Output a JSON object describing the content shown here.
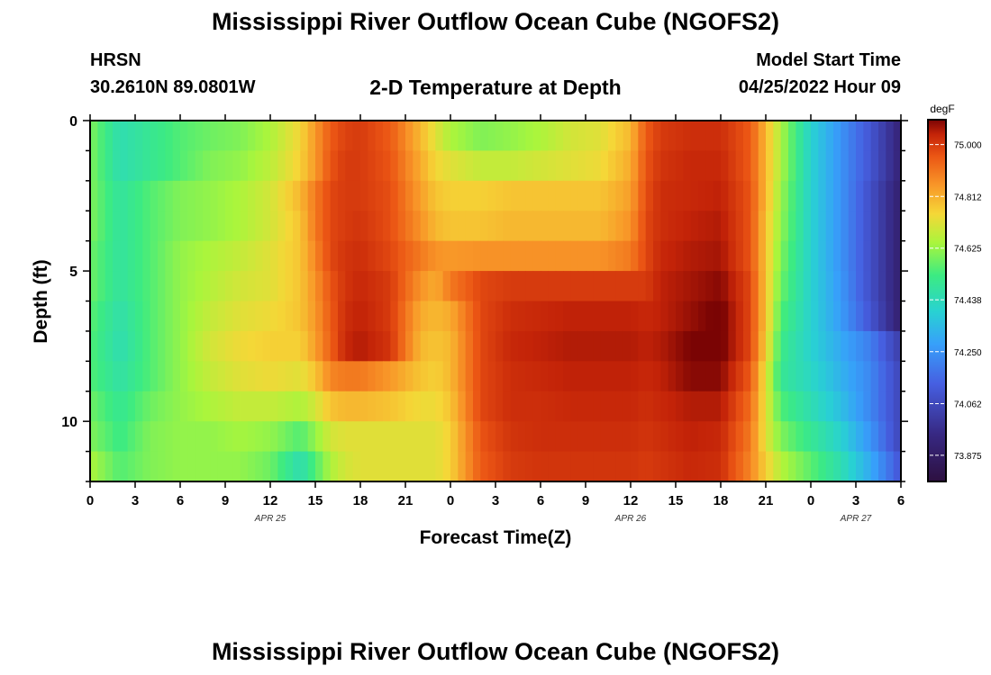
{
  "header": {
    "title": "Mississippi River Outflow Ocean Cube (NGOFS2)",
    "station": "HRSN",
    "coords": "30.2610N  89.0801W",
    "subtitle": "2-D Temperature at Depth",
    "model_start_label": "Model Start Time",
    "model_start_value": "04/25/2022 Hour 09"
  },
  "footer": {
    "title": "Mississippi River Outflow Ocean Cube (NGOFS2)"
  },
  "chart_data": {
    "type": "heatmap",
    "title": "2-D Temperature at Depth",
    "xlabel": "Forecast Time(Z)",
    "ylabel": "Depth (ft)",
    "x_tick_labels": [
      "0",
      "3",
      "6",
      "9",
      "12",
      "15",
      "18",
      "21",
      "0",
      "3",
      "6",
      "9",
      "12",
      "15",
      "18",
      "21",
      "0",
      "3",
      "6"
    ],
    "x_hours": [
      0,
      54
    ],
    "date_labels": [
      {
        "text": "APR 25",
        "hour": 12
      },
      {
        "text": "APR 26",
        "hour": 36
      },
      {
        "text": "APR 27",
        "hour": 51
      }
    ],
    "y_tick_labels": [
      "0",
      "5",
      "10"
    ],
    "y_tick_values": [
      0,
      5,
      10
    ],
    "ylim": [
      0,
      12
    ],
    "colorbar": {
      "unit": "degF",
      "labels": [
        "75.000",
        "74.812",
        "74.625",
        "74.438",
        "74.250",
        "74.062",
        "73.875"
      ],
      "values": [
        75.0,
        74.812,
        74.625,
        74.438,
        74.25,
        74.062,
        73.875
      ],
      "range": [
        73.78,
        75.09
      ]
    },
    "depth_rows_ft": [
      0.5,
      1.5,
      2.5,
      3.5,
      4.5,
      5.5,
      6.5,
      7.5,
      8.5,
      9.5,
      10.5,
      11.5
    ],
    "column_hours": [
      0,
      2,
      4,
      6,
      8,
      10,
      12,
      14,
      15,
      16,
      17,
      18,
      20,
      22,
      23,
      24,
      26,
      28,
      30,
      32,
      34,
      36,
      37,
      38,
      40,
      42,
      44,
      45,
      46,
      48,
      50,
      52,
      54
    ],
    "temperature_degF": [
      [
        74.6,
        74.45,
        74.5,
        74.55,
        74.58,
        74.6,
        74.65,
        74.75,
        74.85,
        74.95,
        74.99,
        75.0,
        74.95,
        74.8,
        74.72,
        74.65,
        74.6,
        74.62,
        74.65,
        74.7,
        74.72,
        74.8,
        74.95,
        75.0,
        75.02,
        75.02,
        74.95,
        74.8,
        74.65,
        74.4,
        74.25,
        74.1,
        73.92
      ],
      [
        74.6,
        74.45,
        74.5,
        74.55,
        74.6,
        74.62,
        74.67,
        74.76,
        74.85,
        74.96,
        75.0,
        75.0,
        74.96,
        74.82,
        74.75,
        74.72,
        74.68,
        74.68,
        74.7,
        74.72,
        74.74,
        74.82,
        74.96,
        75.01,
        75.03,
        75.03,
        74.95,
        74.8,
        74.65,
        74.4,
        74.25,
        74.1,
        73.92
      ],
      [
        74.6,
        74.48,
        74.55,
        74.6,
        74.62,
        74.65,
        74.7,
        74.8,
        74.9,
        74.98,
        75.0,
        75.0,
        74.97,
        74.84,
        74.78,
        74.76,
        74.76,
        74.78,
        74.78,
        74.78,
        74.78,
        74.84,
        74.97,
        75.02,
        75.03,
        75.04,
        74.96,
        74.8,
        74.63,
        74.4,
        74.25,
        74.08,
        73.9
      ],
      [
        74.6,
        74.48,
        74.55,
        74.6,
        74.62,
        74.65,
        74.7,
        74.78,
        74.9,
        74.98,
        75.0,
        75.01,
        74.97,
        74.86,
        74.8,
        74.78,
        74.78,
        74.8,
        74.8,
        74.8,
        74.8,
        74.86,
        74.98,
        75.02,
        75.04,
        75.05,
        74.96,
        74.78,
        74.62,
        74.4,
        74.25,
        74.08,
        73.9
      ],
      [
        74.58,
        74.48,
        74.55,
        74.62,
        74.65,
        74.68,
        74.72,
        74.78,
        74.88,
        74.98,
        75.01,
        75.02,
        74.98,
        74.9,
        74.86,
        74.85,
        74.86,
        74.86,
        74.86,
        74.86,
        74.86,
        74.9,
        74.98,
        75.03,
        75.05,
        75.06,
        74.96,
        74.78,
        74.6,
        74.4,
        74.25,
        74.08,
        73.9
      ],
      [
        74.58,
        74.48,
        74.55,
        74.62,
        74.66,
        74.7,
        74.72,
        74.78,
        74.86,
        74.96,
        75.01,
        75.03,
        75.0,
        74.86,
        74.82,
        74.9,
        74.98,
        75.0,
        75.0,
        75.0,
        75.0,
        75.0,
        75.0,
        75.04,
        75.06,
        75.08,
        74.98,
        74.78,
        74.58,
        74.4,
        74.26,
        74.08,
        73.9
      ],
      [
        74.56,
        74.46,
        74.55,
        74.62,
        74.68,
        74.72,
        74.74,
        74.78,
        74.85,
        74.95,
        75.02,
        75.04,
        75.0,
        74.82,
        74.8,
        74.82,
        74.98,
        75.02,
        75.03,
        75.04,
        75.04,
        75.04,
        75.03,
        75.04,
        75.07,
        75.1,
        74.98,
        74.78,
        74.55,
        74.4,
        74.27,
        74.1,
        73.9
      ],
      [
        74.55,
        74.45,
        74.55,
        74.62,
        74.7,
        74.74,
        74.76,
        74.76,
        74.84,
        74.94,
        75.03,
        75.05,
        75.01,
        74.8,
        74.78,
        74.8,
        74.98,
        75.03,
        75.04,
        75.05,
        75.05,
        75.05,
        75.04,
        75.05,
        75.09,
        75.1,
        74.98,
        74.76,
        74.52,
        74.4,
        74.3,
        74.2,
        74.02
      ],
      [
        74.55,
        74.47,
        74.55,
        74.62,
        74.68,
        74.72,
        74.74,
        74.72,
        74.78,
        74.88,
        74.9,
        74.9,
        74.85,
        74.78,
        74.76,
        74.8,
        74.98,
        75.02,
        75.03,
        75.04,
        75.04,
        75.04,
        75.03,
        75.04,
        75.08,
        75.08,
        74.95,
        74.72,
        74.5,
        74.42,
        74.32,
        74.22,
        74.05
      ],
      [
        74.58,
        74.5,
        74.58,
        74.62,
        74.65,
        74.68,
        74.68,
        74.65,
        74.7,
        74.78,
        74.8,
        74.8,
        74.78,
        74.74,
        74.74,
        74.78,
        74.98,
        75.02,
        75.02,
        75.03,
        75.03,
        75.03,
        75.02,
        75.03,
        75.05,
        75.05,
        74.92,
        74.72,
        74.55,
        74.45,
        74.35,
        74.22,
        74.05
      ],
      [
        74.6,
        74.52,
        74.6,
        74.62,
        74.62,
        74.64,
        74.62,
        74.55,
        74.62,
        74.7,
        74.72,
        74.72,
        74.72,
        74.72,
        74.72,
        74.76,
        74.96,
        75.01,
        75.02,
        75.02,
        75.02,
        75.02,
        75.01,
        75.02,
        75.04,
        75.03,
        74.9,
        74.72,
        74.6,
        74.5,
        74.4,
        74.25,
        74.05
      ],
      [
        74.65,
        74.55,
        74.6,
        74.62,
        74.62,
        74.62,
        74.58,
        74.45,
        74.55,
        74.65,
        74.7,
        74.72,
        74.72,
        74.72,
        74.72,
        74.76,
        74.95,
        75.0,
        75.01,
        75.01,
        75.01,
        75.01,
        75.0,
        75.01,
        75.03,
        75.02,
        74.88,
        74.76,
        74.66,
        74.56,
        74.45,
        74.3,
        74.1
      ]
    ]
  }
}
